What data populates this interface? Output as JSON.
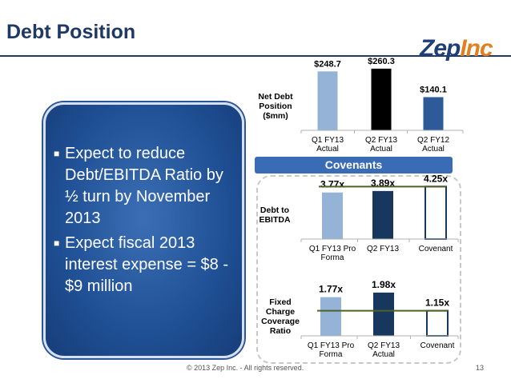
{
  "slide": {
    "title": "Debt Position",
    "logo": {
      "main": "Zep",
      "accent": "Inc"
    },
    "bullets": [
      "Expect to reduce Debt/EBITDA Ratio by ½ turn by November 2013",
      "Expect fiscal 2013 interest expense = $8 - $9 million"
    ],
    "covenants_label": "Covenants",
    "footer": "© 2013 Zep Inc. - All rights reserved.",
    "page_number": "13"
  },
  "colors": {
    "light_blue": "#95b3d7",
    "black": "#000000",
    "mid_blue": "#2e5a9a",
    "navy": "#17375e",
    "covenant_line": "#4f6228"
  },
  "chart_data": [
    {
      "type": "bar",
      "title": "Net Debt Position ($mm)",
      "categories": [
        "Q1 FY13 Actual",
        "Q2 FY13 Actual",
        "Q2 FY12 Actual"
      ],
      "values": [
        248.7,
        260.3,
        140.1
      ],
      "data_labels": [
        "$248.7",
        "$260.3",
        "$140.1"
      ],
      "colors": [
        "#95b3d7",
        "#000000",
        "#2e5a9a"
      ],
      "ylim": [
        0,
        270
      ]
    },
    {
      "type": "bar",
      "title": "Debt to EBITDA",
      "categories": [
        "Q1 FY13 Pro Forma",
        "Q2 FY13",
        "Covenant"
      ],
      "values": [
        3.77,
        3.89,
        4.25
      ],
      "data_labels": [
        "3.77x",
        "3.89x",
        "4.25x"
      ],
      "colors": [
        "#95b3d7",
        "#17375e",
        "#ffffff"
      ],
      "covenant_line": 4.25,
      "ylim": [
        0,
        4.4
      ]
    },
    {
      "type": "bar",
      "title": "Fixed Charge Coverage Ratio",
      "categories": [
        "Q1 FY13 Pro Forma",
        "Q2 FY13 Actual",
        "Covenant"
      ],
      "values": [
        1.77,
        1.98,
        1.15
      ],
      "data_labels": [
        "1.77x",
        "1.98x",
        "1.15x"
      ],
      "colors": [
        "#95b3d7",
        "#17375e",
        "#ffffff"
      ],
      "covenant_line": 1.15,
      "ylim": [
        0,
        2.05
      ]
    }
  ]
}
